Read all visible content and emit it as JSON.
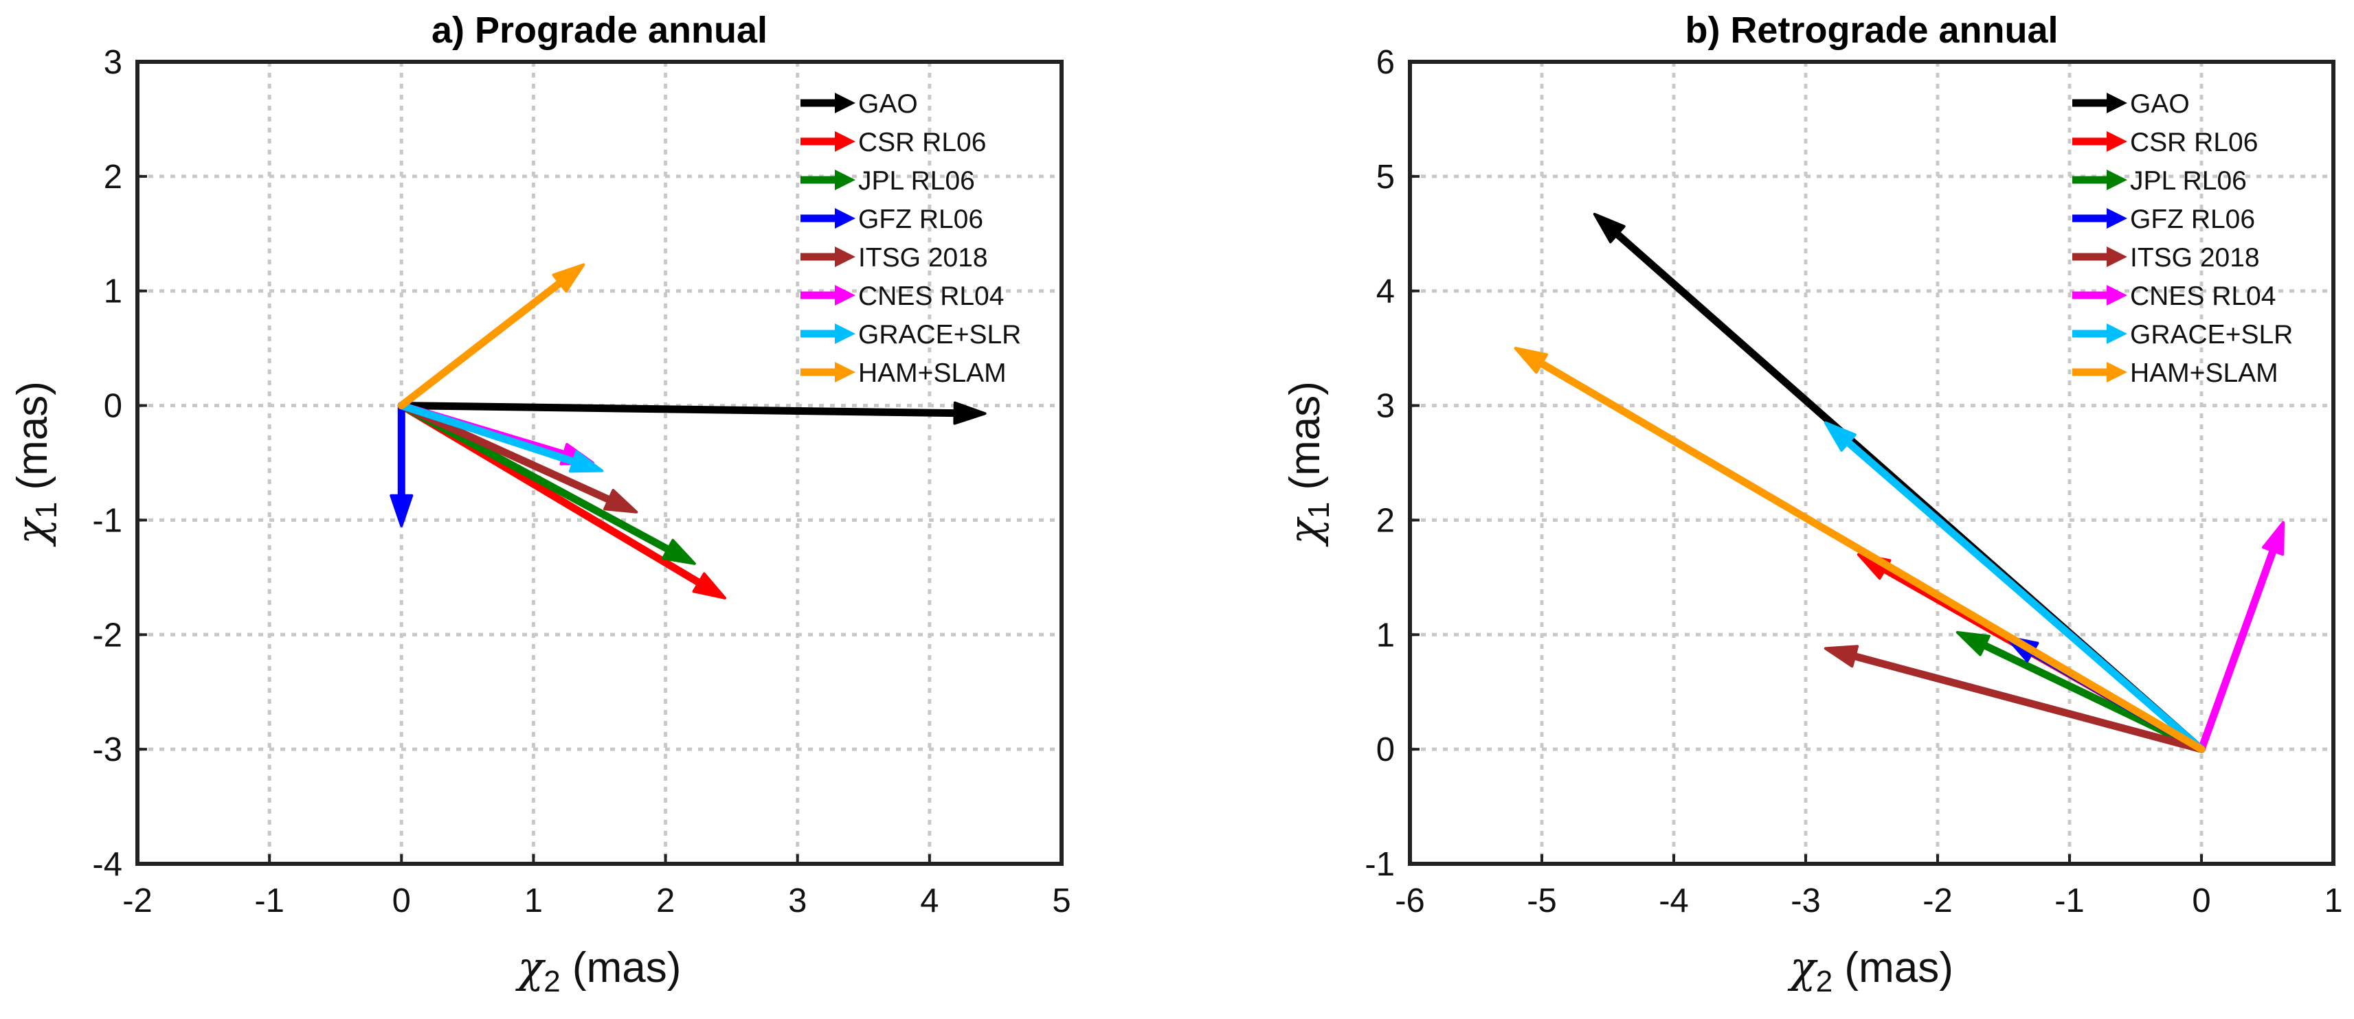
{
  "chart_data": [
    {
      "type": "vector",
      "title": "a) Prograde annual",
      "xlabel_symbol": "χ",
      "xlabel_sub": "2",
      "xlabel_unit": " (mas)",
      "ylabel_symbol": "χ",
      "ylabel_sub": "1",
      "ylabel_unit": " (mas)",
      "xlim": [
        -2,
        5
      ],
      "ylim": [
        -4,
        3
      ],
      "xticks": [
        -2,
        -1,
        0,
        1,
        2,
        3,
        4,
        5
      ],
      "yticks": [
        -4,
        -3,
        -2,
        -1,
        0,
        1,
        2,
        3
      ],
      "grid": true,
      "legend_position": "top-right",
      "series": [
        {
          "name": "GAO",
          "color": "#000000",
          "x": 4.42,
          "y": -0.07
        },
        {
          "name": "CSR RL06",
          "color": "#ff0000",
          "x": 2.45,
          "y": -1.68
        },
        {
          "name": "JPL RL06",
          "color": "#008000",
          "x": 2.22,
          "y": -1.38
        },
        {
          "name": "GFZ RL06",
          "color": "#0000ff",
          "x": 0.0,
          "y": -1.05
        },
        {
          "name": "ITSG 2018",
          "color": "#a52a2a",
          "x": 1.78,
          "y": -0.93
        },
        {
          "name": "CNES RL04",
          "color": "#ff00ff",
          "x": 1.45,
          "y": -0.5
        },
        {
          "name": "GRACE+SLR",
          "color": "#00bfff",
          "x": 1.52,
          "y": -0.57
        },
        {
          "name": "HAM+SLAM",
          "color": "#ff9900",
          "x": 1.38,
          "y": 1.23
        }
      ]
    },
    {
      "type": "vector",
      "title": "b) Retrograde annual",
      "xlabel_symbol": "χ",
      "xlabel_sub": "2",
      "xlabel_unit": " (mas)",
      "ylabel_symbol": "χ",
      "ylabel_sub": "1",
      "ylabel_unit": " (mas)",
      "xlim": [
        -6,
        1
      ],
      "ylim": [
        -1,
        6
      ],
      "xticks": [
        -6,
        -5,
        -4,
        -3,
        -2,
        -1,
        0,
        1
      ],
      "yticks": [
        -1,
        0,
        1,
        2,
        3,
        4,
        5,
        6
      ],
      "grid": true,
      "legend_position": "top-right",
      "series": [
        {
          "name": "GAO",
          "color": "#000000",
          "x": -4.6,
          "y": 4.67
        },
        {
          "name": "CSR RL06",
          "color": "#ff0000",
          "x": -2.6,
          "y": 1.7
        },
        {
          "name": "JPL RL06",
          "color": "#008000",
          "x": -1.85,
          "y": 1.02
        },
        {
          "name": "GFZ RL06",
          "color": "#0000ff",
          "x": -1.48,
          "y": 0.98
        },
        {
          "name": "ITSG 2018",
          "color": "#a52a2a",
          "x": -2.85,
          "y": 0.88
        },
        {
          "name": "CNES RL04",
          "color": "#ff00ff",
          "x": 0.62,
          "y": 1.98
        },
        {
          "name": "GRACE+SLR",
          "color": "#00bfff",
          "x": -2.85,
          "y": 2.85
        },
        {
          "name": "HAM+SLAM",
          "color": "#ff9900",
          "x": -5.2,
          "y": 3.5
        }
      ]
    }
  ]
}
